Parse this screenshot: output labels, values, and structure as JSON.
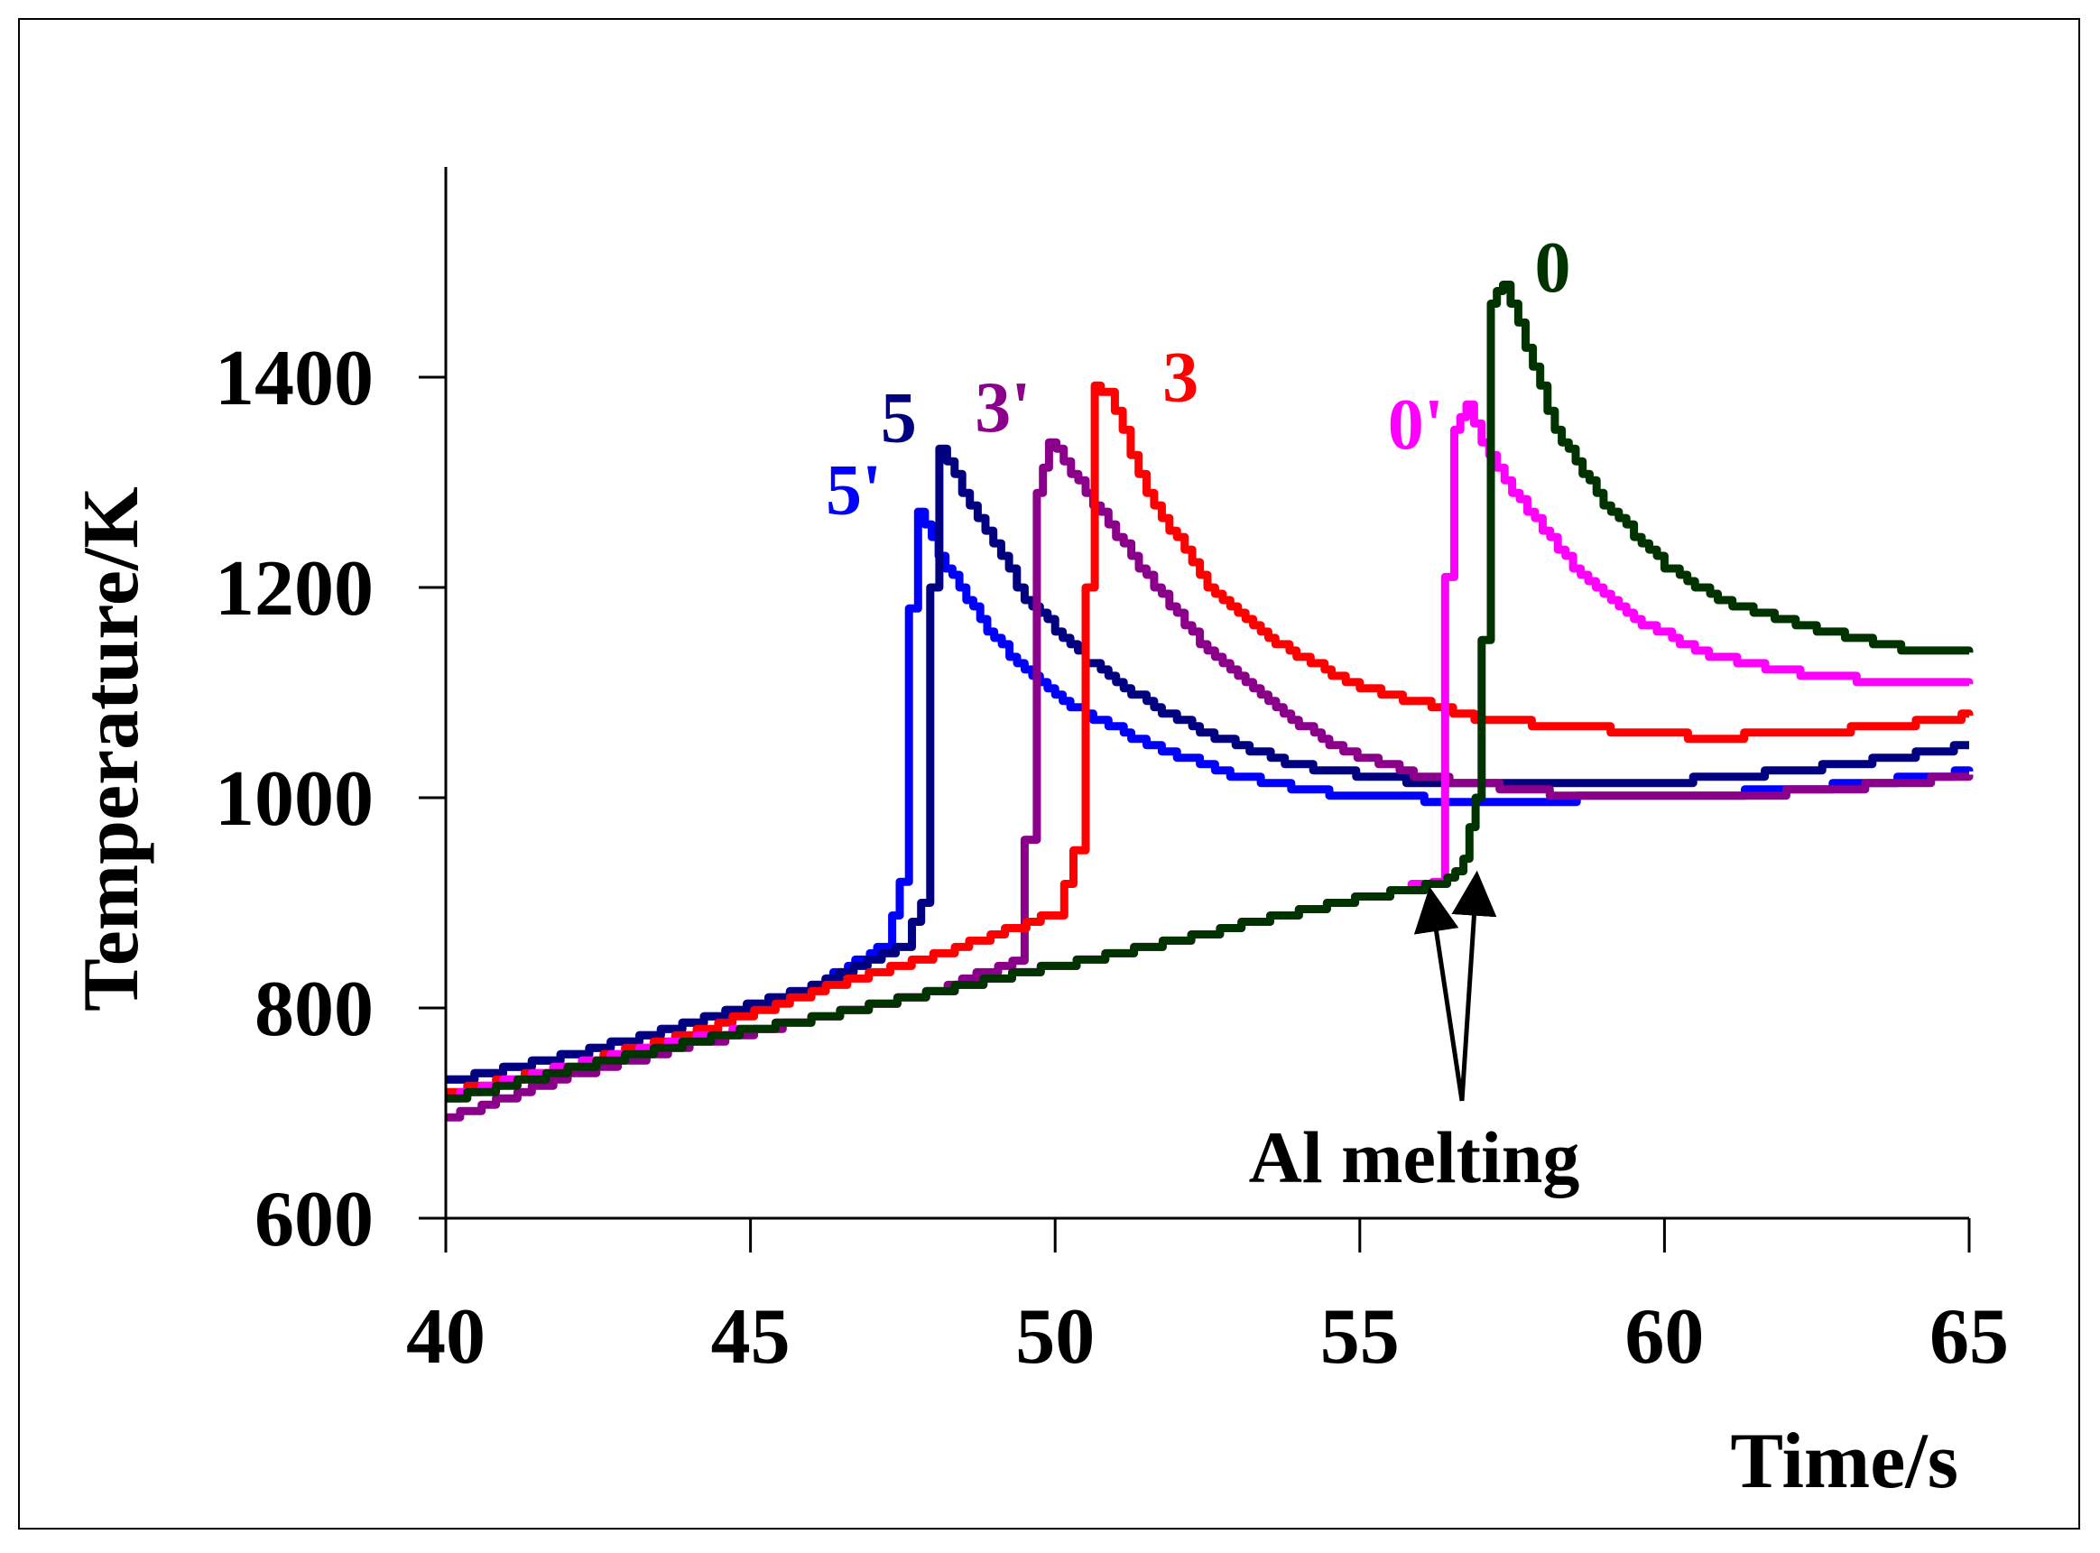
{
  "chart_data": {
    "type": "line",
    "title": "",
    "xlabel": "Time/s",
    "ylabel": "Temperature/K",
    "xlim": [
      40,
      65
    ],
    "ylim": [
      600,
      1600
    ],
    "xticks": [
      "40",
      "45",
      "50",
      "55",
      "60",
      "65"
    ],
    "yticks": [
      "600",
      "800",
      "1000",
      "1200",
      "1400"
    ],
    "annotation": {
      "text": "Al melting",
      "points": [
        [
          56.2,
          920
        ],
        [
          56.9,
          935
        ]
      ]
    },
    "series": [
      {
        "name": "5'",
        "color": "#0000ff",
        "x": [
          40,
          42,
          44,
          46,
          47.2,
          47.45,
          47.6,
          47.75,
          48.2,
          49,
          50,
          51,
          52,
          53,
          54,
          55,
          57,
          60,
          63,
          65
        ],
        "y": [
          730,
          755,
          785,
          820,
          860,
          920,
          1180,
          1270,
          1220,
          1150,
          1095,
          1065,
          1040,
          1020,
          1008,
          1000,
          998,
          1000,
          1012,
          1025
        ]
      },
      {
        "name": "5",
        "color": "#000080",
        "x": [
          40,
          42,
          44,
          46,
          47.5,
          47.8,
          47.95,
          48.1,
          48.6,
          49.5,
          50.5,
          51.5,
          52.5,
          54,
          56,
          58,
          60,
          62,
          64,
          65
        ],
        "y": [
          730,
          755,
          785,
          820,
          860,
          900,
          1200,
          1330,
          1280,
          1190,
          1130,
          1090,
          1060,
          1030,
          1015,
          1012,
          1015,
          1025,
          1040,
          1050
        ]
      },
      {
        "name": "3'",
        "color": "#8b008b",
        "x": [
          40,
          42,
          44,
          46,
          48,
          49.3,
          49.5,
          49.7,
          49.9,
          50.5,
          51.5,
          52.5,
          53.5,
          54.5,
          56,
          58,
          60,
          62,
          64,
          65
        ],
        "y": [
          695,
          735,
          765,
          790,
          815,
          845,
          960,
          1290,
          1340,
          1290,
          1210,
          1140,
          1090,
          1050,
          1020,
          1005,
          1000,
          1005,
          1015,
          1022
        ]
      },
      {
        "name": "3",
        "color": "#ff0000",
        "x": [
          40,
          42,
          44,
          46,
          48,
          50,
          50.3,
          50.5,
          50.65,
          50.85,
          51.5,
          52.5,
          53.5,
          55,
          57,
          59,
          60.5,
          62,
          64,
          65
        ],
        "y": [
          720,
          745,
          775,
          815,
          850,
          890,
          950,
          1200,
          1390,
          1385,
          1290,
          1200,
          1150,
          1105,
          1075,
          1065,
          1058,
          1060,
          1070,
          1078
        ]
      },
      {
        "name": "0'",
        "color": "#ff00ff",
        "x": [
          40,
          42,
          44,
          46,
          48,
          50,
          52,
          54,
          55.5,
          56.2,
          56.4,
          56.55,
          56.75,
          57,
          57.5,
          58.5,
          59.5,
          60.5,
          62,
          63.5,
          65
        ],
        "y": [
          715,
          745,
          770,
          790,
          815,
          840,
          865,
          892,
          910,
          920,
          1210,
          1350,
          1375,
          1340,
          1290,
          1220,
          1170,
          1140,
          1120,
          1110,
          1108
        ]
      },
      {
        "name": "0",
        "color": "#003300",
        "x": [
          40,
          42,
          44,
          46,
          48,
          50,
          52,
          54,
          55.5,
          56.3,
          56.7,
          56.9,
          57.0,
          57.15,
          57.35,
          57.6,
          58.2,
          59,
          60,
          61,
          62.5,
          64,
          65
        ],
        "y": [
          712,
          742,
          768,
          790,
          815,
          840,
          865,
          892,
          910,
          918,
          940,
          1000,
          1150,
          1470,
          1490,
          1450,
          1350,
          1280,
          1220,
          1185,
          1160,
          1140,
          1138
        ]
      }
    ]
  }
}
